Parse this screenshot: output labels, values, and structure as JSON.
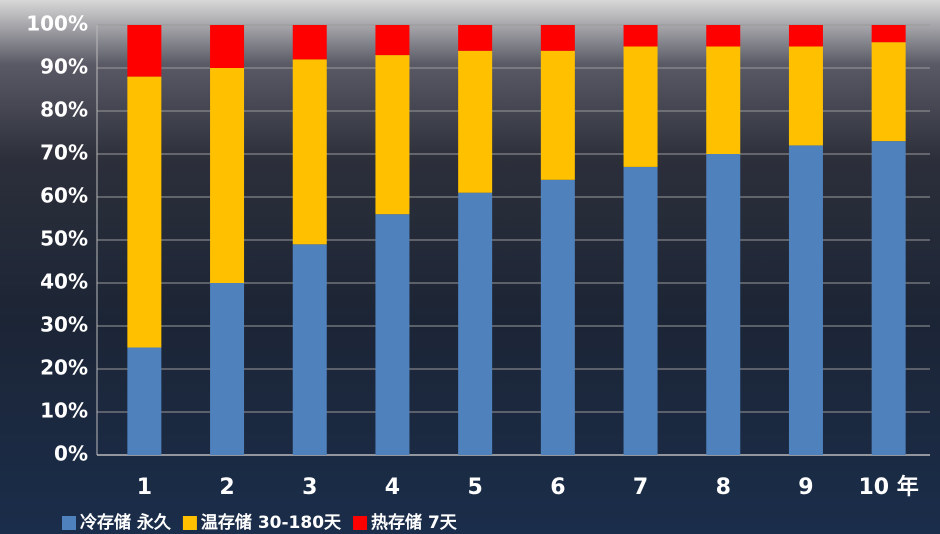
{
  "chart_data": {
    "type": "stacked_bar",
    "categories": [
      "1",
      "2",
      "3",
      "4",
      "5",
      "6",
      "7",
      "8",
      "9",
      "10 年"
    ],
    "series": [
      {
        "name": "冷存储 永久",
        "color": "#4f81bd",
        "values": [
          25,
          40,
          49,
          56,
          61,
          64,
          67,
          70,
          72,
          73
        ]
      },
      {
        "name": "温存储 30-180天",
        "color": "#ffc000",
        "values": [
          63,
          50,
          43,
          37,
          33,
          30,
          28,
          25,
          23,
          23
        ]
      },
      {
        "name": "热存储 7天",
        "color": "#ff0000",
        "values": [
          12,
          10,
          8,
          7,
          6,
          6,
          5,
          5,
          5,
          4
        ]
      }
    ],
    "ylim": [
      0,
      100
    ],
    "yticks": [
      {
        "value": 0,
        "label": "0%"
      },
      {
        "value": 10,
        "label": "10%"
      },
      {
        "value": 20,
        "label": "20%"
      },
      {
        "value": 30,
        "label": "30%"
      },
      {
        "value": 40,
        "label": "40%"
      },
      {
        "value": 50,
        "label": "50%"
      },
      {
        "value": 60,
        "label": "60%"
      },
      {
        "value": 70,
        "label": "70%"
      },
      {
        "value": 80,
        "label": "80%"
      },
      {
        "value": 90,
        "label": "90%"
      },
      {
        "value": 100,
        "label": "100%"
      }
    ],
    "grid": true
  }
}
